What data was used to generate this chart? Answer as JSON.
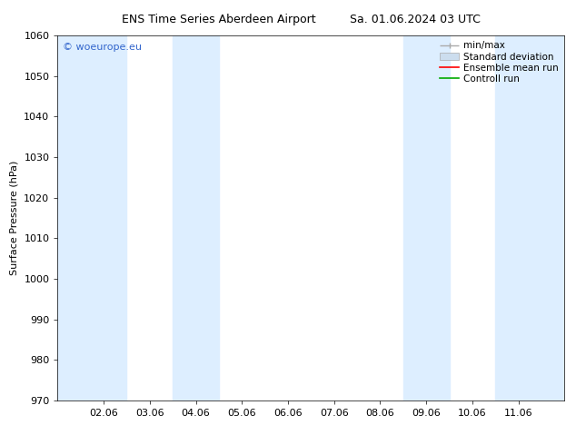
{
  "title": "ENS Time Series Aberdeen Airport",
  "title2": "Sa. 01.06.2024 03 UTC",
  "ylabel": "Surface Pressure (hPa)",
  "ylim": [
    970,
    1060
  ],
  "yticks": [
    970,
    980,
    990,
    1000,
    1010,
    1020,
    1030,
    1040,
    1050,
    1060
  ],
  "xtick_labels": [
    "02.06",
    "03.06",
    "04.06",
    "05.06",
    "06.06",
    "07.06",
    "08.06",
    "09.06",
    "10.06",
    "11.06"
  ],
  "xtick_positions": [
    1,
    2,
    3,
    4,
    5,
    6,
    7,
    8,
    9,
    10
  ],
  "xlim": [
    0,
    11
  ],
  "shaded_bands": [
    {
      "x_start": 0.0,
      "x_end": 1.5
    },
    {
      "x_start": 2.5,
      "x_end": 3.5
    },
    {
      "x_start": 7.5,
      "x_end": 8.5
    },
    {
      "x_start": 9.5,
      "x_end": 10.5
    },
    {
      "x_start": 10.5,
      "x_end": 11.0
    }
  ],
  "shade_color": "#ddeeff",
  "shade_alpha": 1.0,
  "watermark": "© woeurope.eu",
  "watermark_color": "#3366cc",
  "legend_entries": [
    "min/max",
    "Standard deviation",
    "Ensemble mean run",
    "Controll run"
  ],
  "legend_colors": [
    "#aaaaaa",
    "#cccccc",
    "#ff0000",
    "#00aa00"
  ],
  "background_color": "#ffffff",
  "plot_bg_color": "#ffffff",
  "font_size": 8,
  "title_font_size": 9,
  "figsize": [
    6.34,
    4.9
  ],
  "dpi": 100
}
